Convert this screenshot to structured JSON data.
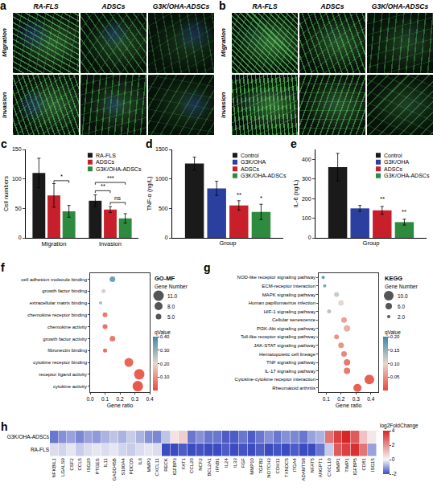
{
  "chart_data": [
    {
      "type": "image_grid",
      "panel": "a",
      "columns": [
        "RA-FLS",
        "ADSCs",
        "G3K/OHA-ADSCs"
      ],
      "rows": [
        "Migration",
        "Invasion"
      ]
    },
    {
      "type": "image_grid",
      "panel": "b",
      "columns": [
        "RA-FLS",
        "ADSCs",
        "G3K/OHA-ADSCs"
      ],
      "rows": [
        "Migration",
        "Invasion"
      ]
    },
    {
      "type": "bar",
      "panel": "c",
      "categories": [
        "Migration",
        "Invasion"
      ],
      "y_label": "Cell numbers",
      "ylim": [
        0,
        150
      ],
      "yticks": [
        0,
        50,
        100,
        150
      ],
      "legend": "upper right",
      "series": [
        {
          "name": "RA-FLS",
          "color": "#1a1a1a",
          "values": [
            110,
            63
          ],
          "errors": [
            25,
            10
          ]
        },
        {
          "name": "ADSCs",
          "color": "#c8202a",
          "values": [
            72,
            48
          ],
          "errors": [
            20,
            5
          ]
        },
        {
          "name": "G3K/OHA-ADSCs",
          "color": "#2e8b3e",
          "values": [
            45,
            33
          ],
          "errors": [
            10,
            8
          ]
        }
      ],
      "annotations": [
        {
          "category": "Migration",
          "between": [
            "ADSCs",
            "G3K/OHA-ADSCs"
          ],
          "y": 97,
          "text": "*"
        },
        {
          "category": "Invasion",
          "between": [
            "RA-FLS",
            "ADSCs"
          ],
          "y": 80,
          "text": "**"
        },
        {
          "category": "Invasion",
          "between": [
            "RA-FLS",
            "G3K/OHA-ADSCs"
          ],
          "y": 94,
          "text": "***"
        },
        {
          "category": "Invasion",
          "between": [
            "ADSCs",
            "G3K/OHA-ADSCs"
          ],
          "y": 60,
          "text": "ns"
        }
      ]
    },
    {
      "type": "bar",
      "panel": "d",
      "x_label": "Group",
      "y_label": "TNF-α (ng/L)",
      "tick_labels": "y",
      "ylim": [
        0,
        1500
      ],
      "yticks": [
        0,
        500,
        1000,
        1500
      ],
      "legend": "upper right",
      "series": [
        {
          "name": "Control",
          "color": "#1a1a1a",
          "values": [
            1260
          ],
          "errors": [
            110
          ]
        },
        {
          "name": "G3K/OHA",
          "color": "#2b3f9e",
          "values": [
            840
          ],
          "errors": [
            120
          ]
        },
        {
          "name": "ADSCs",
          "color": "#c8202a",
          "values": [
            550
          ],
          "errors": [
            80
          ]
        },
        {
          "name": "G3K/OHA-ADSCs",
          "color": "#2e8b3e",
          "values": [
            440
          ],
          "errors": [
            130
          ]
        }
      ],
      "annotations": [
        {
          "series": "ADSCs",
          "y": 660,
          "text": "**"
        },
        {
          "series": "G3K/OHA-ADSCs",
          "y": 600,
          "text": "*"
        }
      ]
    },
    {
      "type": "bar",
      "panel": "e",
      "x_label": "Group",
      "y_label": "IL-6 (ng/L)",
      "tick_labels": "y",
      "ylim": [
        0,
        450
      ],
      "yticks": [
        0,
        100,
        200,
        300,
        400
      ],
      "legend": "upper right",
      "series": [
        {
          "name": "Control",
          "color": "#1a1a1a",
          "values": [
            360
          ],
          "errors": [
            70
          ]
        },
        {
          "name": "G3K/OHA",
          "color": "#2b3f9e",
          "values": [
            150
          ],
          "errors": [
            15
          ]
        },
        {
          "name": "ADSCs",
          "color": "#c8202a",
          "values": [
            140
          ],
          "errors": [
            20
          ]
        },
        {
          "name": "G3K/OHA-ADSCs",
          "color": "#2e8b3e",
          "values": [
            80
          ],
          "errors": [
            15
          ]
        }
      ],
      "annotations": [
        {
          "series": "ADSCs",
          "y": 175,
          "text": "**"
        },
        {
          "series": "G3K/OHA-ADSCs",
          "y": 110,
          "text": "**"
        }
      ]
    },
    {
      "type": "bubble",
      "panel": "f",
      "title": "GO-MF",
      "x_label": "Gene ratio",
      "categories": [
        "cell adhesion molecule binding",
        "growth factor binding",
        "extracellular matrix binding",
        "chemokine receptor binding",
        "chemokine activity",
        "growth factor activity",
        "fibronectin binding",
        "cytokine receptor binding",
        "receptor ligand activity",
        "cytokine activity"
      ],
      "x": [
        0.15,
        0.09,
        0.07,
        0.1,
        0.1,
        0.15,
        0.1,
        0.26,
        0.33,
        0.32
      ],
      "size": [
        5,
        3,
        2,
        4,
        4,
        5,
        3,
        9,
        11,
        11
      ],
      "q_value": [
        0.35,
        0.22,
        0.28,
        0.06,
        0.05,
        0.06,
        0.04,
        0.03,
        0.02,
        0.01
      ],
      "xlim": [
        0,
        0.4
      ],
      "xticks": [
        {
          "value": 0,
          "label": "0.0"
        },
        0.1,
        0.2,
        0.3,
        0.4
      ],
      "size_legend_title": "Gene Number",
      "size_legend": [
        {
          "value": 11,
          "label": "11.0"
        },
        {
          "value": 8,
          "label": "8.0"
        },
        {
          "value": 5,
          "label": "5.0"
        }
      ],
      "colorbar_title": "qValue",
      "colorbar_range": [
        0,
        0.4
      ],
      "colorbar_ticks": [
        {
          "value": 0.1,
          "label": "0.10"
        },
        {
          "value": 0.2,
          "label": "0.20"
        },
        {
          "value": 0.3,
          "label": "0.30"
        },
        {
          "value": 0.4,
          "label": "0.40"
        }
      ]
    },
    {
      "type": "bubble",
      "panel": "g",
      "title": "KEGG",
      "x_label": "Gene ratio",
      "categories": [
        "NOD-like receptor signaling pathway",
        "ECM-receptor interaction",
        "MAPK signaling pathway",
        "Human papillomavirus infection",
        "HIF-1 signaling pathway",
        "Cellular senescence",
        "PI3K-Akt signaling pathway",
        "Toll-like receptor signaling pathway",
        "JAK-STAT signaling pathway",
        "Hematopoietic cell lineage",
        "TNF signaling pathway",
        "IL-17 signaling pathway",
        "Cytokine-cytokine receptor interaction",
        "Rheumatoid arthritis"
      ],
      "x": [
        0.08,
        0.09,
        0.17,
        0.2,
        0.12,
        0.22,
        0.24,
        0.17,
        0.2,
        0.22,
        0.24,
        0.24,
        0.39,
        0.31
      ],
      "size": [
        2,
        2,
        4,
        5,
        3,
        5,
        6,
        4,
        5,
        5,
        6,
        6,
        10,
        8
      ],
      "q_value": [
        0.18,
        0.17,
        0.12,
        0.1,
        0.13,
        0.06,
        0.07,
        0.05,
        0.05,
        0.04,
        0.03,
        0.03,
        0.01,
        0.01
      ],
      "xlim": [
        0.05,
        0.45
      ],
      "xticks": [
        0.1,
        0.2,
        0.3,
        0.4
      ],
      "size_legend_title": "Gene Number",
      "size_legend": [
        {
          "value": 10,
          "label": "10.0"
        },
        {
          "value": 6,
          "label": "6.0"
        },
        {
          "value": 2,
          "label": "2.0"
        }
      ],
      "colorbar_title": "qValue",
      "colorbar_range": [
        0,
        0.2
      ],
      "colorbar_ticks": [
        0.05,
        {
          "value": 0.1,
          "label": "0.10"
        },
        0.15,
        {
          "value": 0.2,
          "label": "0.20"
        }
      ]
    },
    {
      "type": "heatmap",
      "panel": "h",
      "x": [
        "NFKBIL1",
        "LGALS9",
        "CSF2",
        "CCL5",
        "ISG20",
        "PTGES",
        "IL11",
        "GADD45B",
        "S100A4",
        "PDCD5",
        "IL6",
        "MMP3",
        "CXCL11",
        "RECK",
        "IGFBP3",
        "FAT1",
        "CCL20",
        "NCF2",
        "BCL2A1",
        "IFNB1",
        "IL24",
        "IL33",
        "FGF",
        "MMP10",
        "TGFB2",
        "NOTCH3",
        "CDH11",
        "TXNDC5",
        "ITGA4",
        "ADAMTS8",
        "NFAT5",
        "ANGPT1",
        "CXCL10",
        "MMP1",
        "TIMP1",
        "IGFBP5",
        "CD81",
        "ISG15"
      ],
      "y": [
        "G3K/OHA-ADSCs",
        "RA-FLS"
      ],
      "cells": [
        [
          -1.5,
          -1.2,
          -1.0,
          -1.3,
          -1.0,
          -1.1,
          -0.8,
          -0.6,
          -0.8,
          -0.5,
          -0.8,
          -1.2,
          -1.3,
          -0.6,
          0.4,
          0.8,
          -1.5,
          -1.2,
          -1.5,
          -1.5,
          -1.8,
          -1.8,
          -1.5,
          -1.8,
          -1.5,
          -1.2,
          -1.5,
          -1.2,
          -1.3,
          -1.5,
          -1.0,
          -0.8,
          2.5,
          3.5,
          4.0,
          3.0,
          1.0,
          0.3
        ],
        [
          -0.3,
          -0.4,
          -0.2,
          -0.5,
          -0.3,
          -0.2,
          -0.3,
          -0.2,
          -0.4,
          -0.5,
          -0.3,
          -0.2,
          -0.3,
          -2.0,
          -2.0,
          -1.8,
          -2.0,
          -1.9,
          -2.0,
          -2.0,
          -1.8,
          -2.0,
          -1.9,
          -2.0,
          -1.8,
          -2.0,
          -1.9,
          -2.0,
          -1.8,
          -2.0,
          -2.0,
          -1.5,
          -0.5,
          3.0,
          3.5,
          3.8,
          2.5,
          -1.0
        ]
      ],
      "colorbar_title": "log2FoldChange",
      "colorbar_range": [
        -2,
        4
      ],
      "colorbar_ticks": [
        -2,
        0,
        2,
        4
      ]
    }
  ]
}
